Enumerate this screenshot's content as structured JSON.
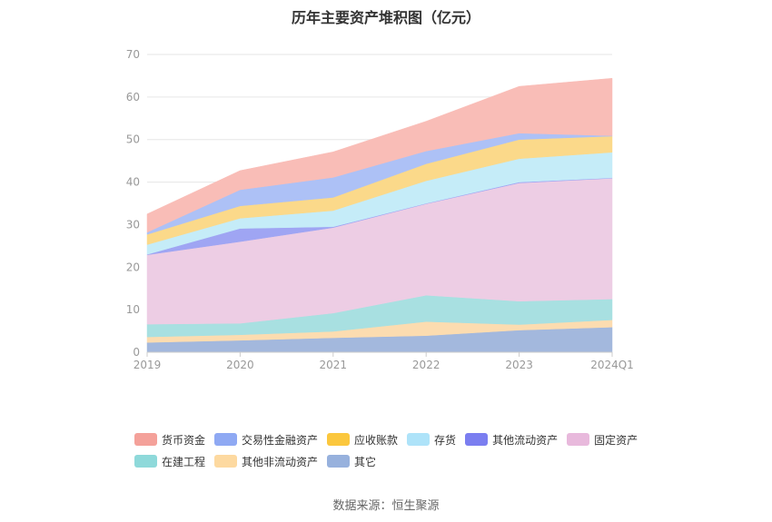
{
  "chart_data": {
    "type": "area",
    "stacked": true,
    "title": "历年主要资产堆积图（亿元）",
    "categories": [
      "2019",
      "2020",
      "2021",
      "2022",
      "2023",
      "2024Q1"
    ],
    "ylim": [
      0,
      70
    ],
    "yticks": [
      0,
      10,
      20,
      30,
      40,
      50,
      60,
      70
    ],
    "grid": true,
    "legend_position": "bottom",
    "series": [
      {
        "name": "其它",
        "color": "#a3b8dd",
        "values": [
          2.3,
          2.8,
          3.4,
          3.9,
          5.2,
          5.9
        ]
      },
      {
        "name": "其他非流动资产",
        "color": "#fcdcb0",
        "values": [
          1.3,
          1.3,
          1.5,
          3.3,
          1.3,
          1.7
        ]
      },
      {
        "name": "在建工程",
        "color": "#a8e0e1",
        "values": [
          3.0,
          2.7,
          4.3,
          6.2,
          5.5,
          4.9
        ]
      },
      {
        "name": "固定资产",
        "color": "#edcde4",
        "values": [
          16.3,
          19.2,
          20.1,
          21.5,
          27.8,
          28.4
        ]
      },
      {
        "name": "其他流动资产",
        "color": "#9fa5f3",
        "values": [
          0.1,
          3.1,
          0.2,
          0.1,
          0.2,
          0.1
        ]
      },
      {
        "name": "存货",
        "color": "#c5ecf8",
        "values": [
          2.3,
          2.4,
          3.8,
          5.3,
          5.5,
          6.0
        ]
      },
      {
        "name": "应收账款",
        "color": "#fbd98a",
        "values": [
          2.4,
          2.9,
          3.1,
          4.0,
          4.5,
          3.8
        ]
      },
      {
        "name": "交易性金融资产",
        "color": "#adc1f6",
        "values": [
          0.5,
          3.8,
          4.7,
          3.0,
          1.5,
          0.1
        ]
      },
      {
        "name": "货币资金",
        "color": "#f9bdb7",
        "values": [
          4.3,
          4.5,
          6.0,
          7.0,
          11.0,
          13.5
        ]
      }
    ]
  },
  "legend_order": [
    "货币资金",
    "交易性金融资产",
    "应收账款",
    "存货",
    "其他流动资产",
    "固定资产",
    "在建工程",
    "其他非流动资产",
    "其它"
  ],
  "legend_colors": {
    "货币资金": "#f4a19a",
    "交易性金融资产": "#8fa9f3",
    "应收账款": "#fbc73e",
    "存货": "#aee3f9",
    "其他流动资产": "#7b7ef0",
    "固定资产": "#e8b9dc",
    "在建工程": "#8ed9da",
    "其他非流动资产": "#fdd9a0",
    "其它": "#97b1dd"
  },
  "source": "数据来源：恒生聚源"
}
